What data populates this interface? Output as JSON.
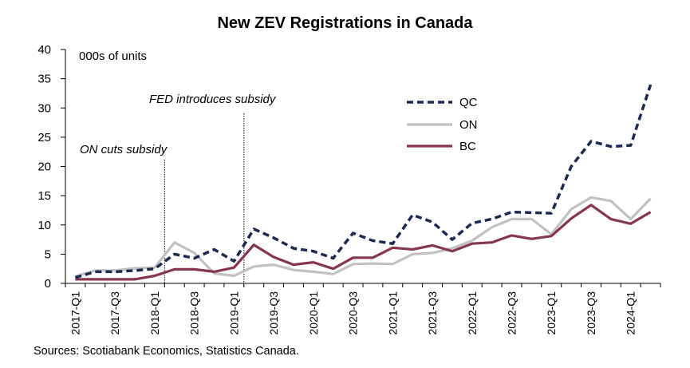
{
  "chart_data": {
    "type": "line",
    "title": "New ZEV Registrations in Canada",
    "unit_note": "000s of units",
    "ylim": [
      0,
      40
    ],
    "yticks": [
      0,
      5,
      10,
      15,
      20,
      25,
      30,
      35,
      40
    ],
    "grid": false,
    "legend_position": "top-center",
    "x": [
      "2017-Q1",
      "2017-Q2",
      "2017-Q3",
      "2017-Q4",
      "2018-Q1",
      "2018-Q2",
      "2018-Q3",
      "2018-Q4",
      "2019-Q1",
      "2019-Q2",
      "2019-Q3",
      "2019-Q4",
      "2020-Q1",
      "2020-Q2",
      "2020-Q3",
      "2020-Q4",
      "2021-Q1",
      "2021-Q2",
      "2021-Q3",
      "2021-Q4",
      "2022-Q1",
      "2022-Q2",
      "2022-Q3",
      "2022-Q4",
      "2023-Q1",
      "2023-Q2",
      "2023-Q3",
      "2023-Q4",
      "2024-Q1",
      "2024-Q2"
    ],
    "xtick_labels": [
      "2017-Q1",
      "2017-Q3",
      "2018-Q1",
      "2018-Q3",
      "2019-Q1",
      "2019-Q3",
      "2020-Q1",
      "2020-Q3",
      "2021-Q1",
      "2021-Q3",
      "2022-Q1",
      "2022-Q3",
      "2023-Q1",
      "2023-Q3",
      "2024-Q1"
    ],
    "series": [
      {
        "name": "QC",
        "color": "#1c2b52",
        "style": "dashed",
        "values": [
          1.0,
          2.0,
          2.0,
          2.2,
          2.5,
          5.0,
          4.3,
          5.8,
          3.8,
          9.3,
          7.8,
          6.0,
          5.5,
          4.3,
          8.6,
          7.3,
          6.8,
          11.7,
          10.5,
          7.5,
          10.3,
          11.0,
          12.2,
          12.1,
          12.0,
          20.0,
          24.3,
          23.4,
          23.6,
          34.0
        ]
      },
      {
        "name": "ON",
        "color": "#c2c2c2",
        "style": "solid",
        "values": [
          1.2,
          2.2,
          2.2,
          2.6,
          2.7,
          7.0,
          5.2,
          1.7,
          1.3,
          2.9,
          3.2,
          2.3,
          2.0,
          1.6,
          3.3,
          3.4,
          3.3,
          5.0,
          5.2,
          6.0,
          7.3,
          9.6,
          11.0,
          11.0,
          8.4,
          12.7,
          14.7,
          14.1,
          11.0,
          14.5
        ]
      },
      {
        "name": "BC",
        "color": "#87364d",
        "style": "solid",
        "values": [
          0.7,
          0.7,
          0.7,
          0.7,
          1.3,
          2.4,
          2.4,
          2.0,
          2.7,
          6.6,
          4.5,
          3.2,
          3.6,
          2.5,
          4.4,
          4.4,
          6.1,
          5.8,
          6.5,
          5.5,
          6.8,
          7.0,
          8.2,
          7.6,
          8.1,
          11.1,
          13.4,
          11.0,
          10.2,
          12.2
        ]
      }
    ],
    "annotations": [
      {
        "text": "FED introduces subsidy",
        "x": "2019-Q2"
      },
      {
        "text": "ON cuts subsidy",
        "x": "2018-Q2"
      }
    ]
  },
  "source_text": "Sources: Scotiabank Economics, Statistics Canada."
}
